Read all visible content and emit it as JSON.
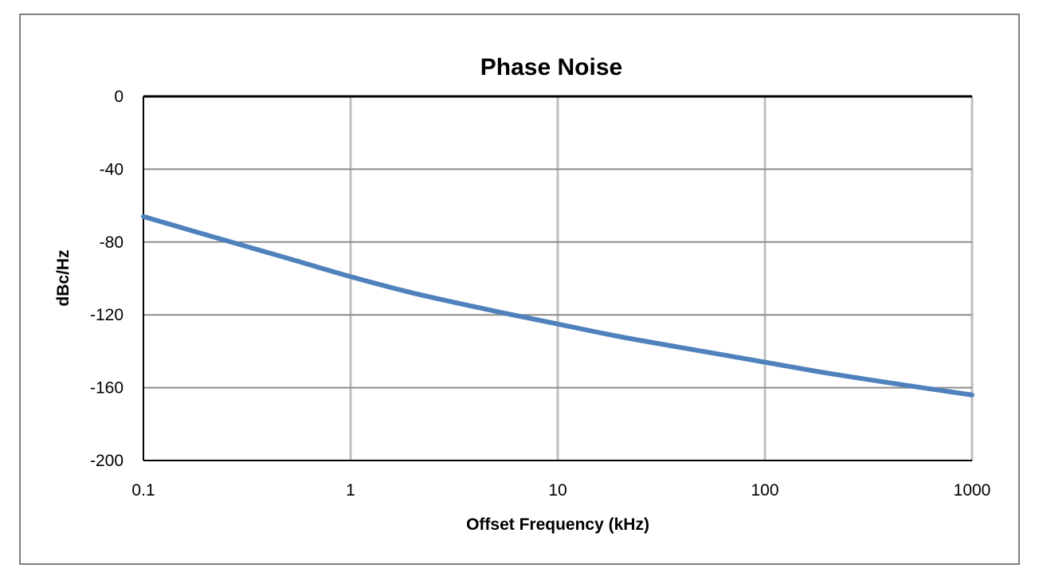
{
  "chart_data": {
    "type": "line",
    "title": "Phase Noise",
    "xlabel": "Offset Frequency (kHz)",
    "ylabel": "dBc/Hz",
    "x_scale": "log",
    "xlim": [
      0.1,
      1000
    ],
    "ylim": [
      -200,
      0
    ],
    "x_ticks": [
      "0.1",
      "1",
      "10",
      "100",
      "1000"
    ],
    "x_tick_values": [
      0.1,
      1,
      10,
      100,
      1000
    ],
    "y_ticks": [
      "0",
      "-40",
      "-80",
      "-120",
      "-160",
      "-200"
    ],
    "y_tick_values": [
      0,
      -40,
      -80,
      -120,
      -160,
      -200
    ],
    "grid": true,
    "legend": "none",
    "series": [
      {
        "color": "#4f81bd",
        "x": [
          0.1,
          0.2,
          0.5,
          1,
          2,
          5,
          10,
          20,
          50,
          100,
          200,
          500,
          1000
        ],
        "y": [
          -66,
          -76,
          -89,
          -99,
          -108,
          -118,
          -125,
          -132,
          -140,
          -146,
          -152,
          -159,
          -164
        ]
      }
    ]
  }
}
